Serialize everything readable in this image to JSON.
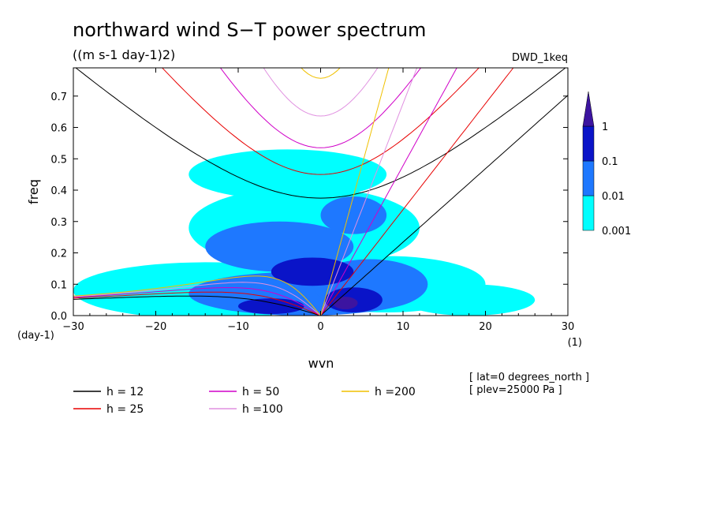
{
  "chart_data": {
    "type": "heatmap",
    "title": "northward wind S−T power spectrum",
    "subtitle": "((m s-1 day-1)2)",
    "dataset_label": "DWD_1keq",
    "xlabel": "wvn",
    "ylabel": "freq",
    "x_unit": "(1)",
    "y_unit": "(day-1)",
    "xlim": [
      -30,
      30
    ],
    "ylim": [
      0,
      0.79
    ],
    "x_ticks": [
      "−30",
      "−20",
      "−10",
      "0",
      "10",
      "20",
      "30"
    ],
    "x_tick_values": [
      -30,
      -20,
      -10,
      0,
      10,
      20,
      30
    ],
    "y_ticks": [
      "0.0",
      "0.1",
      "0.2",
      "0.3",
      "0.4",
      "0.5",
      "0.6",
      "0.7"
    ],
    "y_tick_values": [
      0,
      0.1,
      0.2,
      0.3,
      0.4,
      0.5,
      0.6,
      0.7
    ],
    "colorbar": {
      "levels": [
        "0.001",
        "0.01",
        "0.1",
        "1"
      ],
      "colors": [
        "#00ffff",
        "#1e78ff",
        "#0a14c8",
        "#3c14a0"
      ]
    },
    "annotations": [
      "[ lat=0 degrees_north ]",
      "[ plev=25000 Pa ]"
    ],
    "dispersion_curves": [
      {
        "name": "h = 12",
        "color": "#000000"
      },
      {
        "name": "h = 25",
        "color": "#e80000"
      },
      {
        "name": "h = 50",
        "color": "#d000c8"
      },
      {
        "name": "h =100",
        "color": "#e090e0"
      },
      {
        "name": "h =200",
        "color": "#f0c000"
      }
    ],
    "power_regions": [
      {
        "level": 0,
        "shape": "ellipse",
        "x": -2,
        "y": 0.28,
        "rx": 14,
        "ry": 0.13
      },
      {
        "level": 0,
        "shape": "ellipse",
        "x": -14,
        "y": 0.08,
        "rx": 16,
        "ry": 0.09
      },
      {
        "level": 0,
        "shape": "ellipse",
        "x": 8,
        "y": 0.1,
        "rx": 12,
        "ry": 0.09
      },
      {
        "level": 0,
        "shape": "ellipse",
        "x": -4,
        "y": 0.45,
        "rx": 12,
        "ry": 0.08
      },
      {
        "level": 0,
        "shape": "ellipse",
        "x": 18,
        "y": 0.05,
        "rx": 8,
        "ry": 0.05
      },
      {
        "level": 1,
        "shape": "ellipse",
        "x": -5,
        "y": 0.22,
        "rx": 9,
        "ry": 0.08
      },
      {
        "level": 1,
        "shape": "ellipse",
        "x": -2,
        "y": 0.07,
        "rx": 14,
        "ry": 0.07
      },
      {
        "level": 1,
        "shape": "ellipse",
        "x": 6,
        "y": 0.1,
        "rx": 7,
        "ry": 0.08
      },
      {
        "level": 1,
        "shape": "ellipse",
        "x": 4,
        "y": 0.32,
        "rx": 4,
        "ry": 0.06
      },
      {
        "level": 2,
        "shape": "ellipse",
        "x": -1,
        "y": 0.14,
        "rx": 5,
        "ry": 0.045
      },
      {
        "level": 2,
        "shape": "ellipse",
        "x": 4,
        "y": 0.05,
        "rx": 3.5,
        "ry": 0.04
      },
      {
        "level": 2,
        "shape": "ellipse",
        "x": -6,
        "y": 0.03,
        "rx": 4,
        "ry": 0.025
      },
      {
        "level": 3,
        "shape": "ellipse",
        "x": 3,
        "y": 0.04,
        "rx": 1.5,
        "ry": 0.02
      }
    ]
  }
}
